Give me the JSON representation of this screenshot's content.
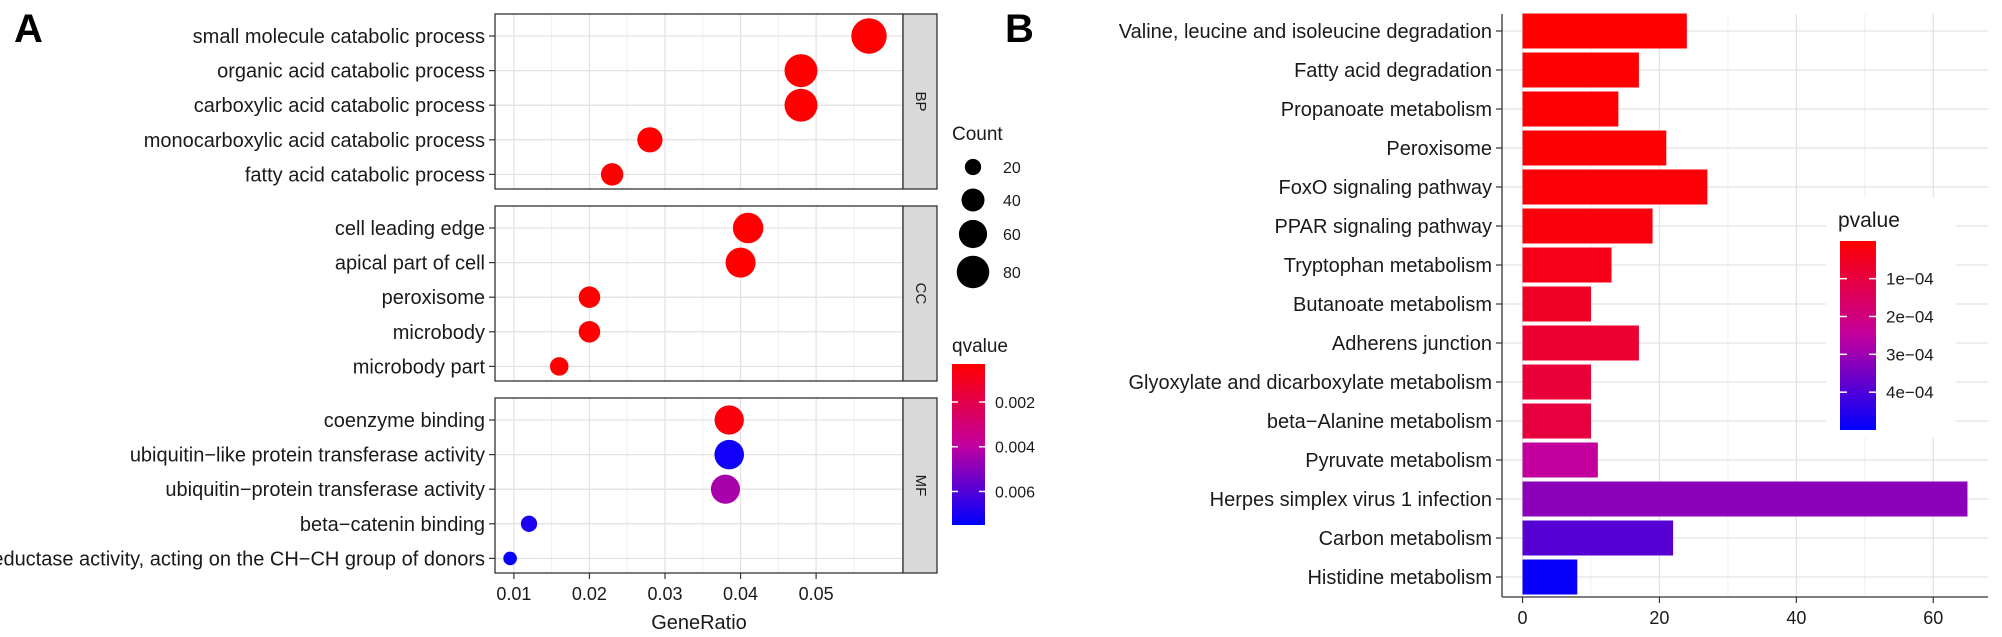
{
  "panels": {
    "a_label": "A",
    "b_label": "B"
  },
  "chart_data": [
    {
      "type": "scatter",
      "panel": "A",
      "xlabel": "GeneRatio",
      "xlim": [
        0.0075,
        0.0615
      ],
      "xticks": [
        0.01,
        0.02,
        0.03,
        0.04,
        0.05
      ],
      "x_tick_labels": [
        "0.01",
        "0.02",
        "0.03",
        "0.04",
        "0.05"
      ],
      "grid": true,
      "facets": [
        {
          "name": "BP",
          "terms": [
            {
              "label": "small molecule catabolic process",
              "x": 0.057,
              "count": 95,
              "qvalue": 0.0003
            },
            {
              "label": "organic acid catabolic process",
              "x": 0.048,
              "count": 82,
              "qvalue": 0.0003
            },
            {
              "label": "carboxylic acid catabolic process",
              "x": 0.048,
              "count": 82,
              "qvalue": 0.0003
            },
            {
              "label": "monocarboxylic acid catabolic process",
              "x": 0.028,
              "count": 48,
              "qvalue": 0.0003
            },
            {
              "label": "fatty acid catabolic process",
              "x": 0.023,
              "count": 38,
              "qvalue": 0.0003
            }
          ]
        },
        {
          "name": "CC",
          "terms": [
            {
              "label": "cell leading edge",
              "x": 0.041,
              "count": 70,
              "qvalue": 0.0003
            },
            {
              "label": "apical part of cell",
              "x": 0.04,
              "count": 68,
              "qvalue": 0.0003
            },
            {
              "label": "peroxisome",
              "x": 0.02,
              "count": 35,
              "qvalue": 0.0003
            },
            {
              "label": "microbody",
              "x": 0.02,
              "count": 35,
              "qvalue": 0.0003
            },
            {
              "label": "microbody part",
              "x": 0.016,
              "count": 26,
              "qvalue": 0.0003
            }
          ]
        },
        {
          "name": "MF",
          "terms": [
            {
              "label": "coenzyme binding",
              "x": 0.0385,
              "count": 65,
              "qvalue": 0.0006
            },
            {
              "label": "ubiquitin−like protein transferase activity",
              "x": 0.0385,
              "count": 66,
              "qvalue": 0.0072
            },
            {
              "label": "ubiquitin−protein transferase activity",
              "x": 0.038,
              "count": 64,
              "qvalue": 0.0044
            },
            {
              "label": "beta−catenin binding",
              "x": 0.012,
              "count": 20,
              "qvalue": 0.007
            },
            {
              "label": "oxidoreductase activity, acting on the CH−CH group of donors",
              "x": 0.0095,
              "count": 14,
              "qvalue": 0.0074
            }
          ]
        }
      ],
      "size_legend": {
        "title": "Count",
        "values": [
          20,
          40,
          60,
          80
        ],
        "labels": [
          "20",
          "40",
          "60",
          "80"
        ]
      },
      "color_legend": {
        "title": "qvalue",
        "range": [
          0.0003,
          0.0075
        ],
        "ticks": [
          0.002,
          0.004,
          0.006
        ],
        "tick_labels": [
          "0.002",
          "0.004",
          "0.006"
        ],
        "low_color": "#ff0000",
        "high_color": "#0000ff"
      }
    },
    {
      "type": "bar",
      "orientation": "horizontal",
      "panel": "B",
      "categories": [
        "Valine, leucine and isoleucine degradation",
        "Fatty acid degradation",
        "Propanoate metabolism",
        "Peroxisome",
        "FoxO signaling pathway",
        "PPAR signaling pathway",
        "Tryptophan metabolism",
        "Butanoate metabolism",
        "Adherens junction",
        "Glyoxylate and dicarboxylate metabolism",
        "beta−Alanine metabolism",
        "Pyruvate metabolism",
        "Herpes simplex virus 1 infection",
        "Carbon metabolism",
        "Histidine metabolism"
      ],
      "values": [
        24,
        17,
        14,
        21,
        27,
        19,
        13,
        10,
        17,
        10,
        10,
        11,
        65,
        22,
        8
      ],
      "pvalues": [
        5e-07,
        3e-06,
        5e-06,
        7e-06,
        1.2e-05,
        2e-05,
        4e-05,
        6e-05,
        8e-05,
        9e-05,
        0.0001,
        0.00025,
        0.00032,
        0.00039,
        0.00049
      ],
      "xlim": [
        -3,
        68
      ],
      "xticks": [
        0,
        20,
        40,
        60
      ],
      "x_tick_labels": [
        "0",
        "20",
        "40",
        "60"
      ],
      "grid": true,
      "color_legend": {
        "title": "pvalue",
        "range": [
          5e-07,
          0.0005
        ],
        "ticks": [
          0.0001,
          0.0002,
          0.0003,
          0.0004
        ],
        "tick_labels": [
          "1e−04",
          "2e−04",
          "3e−04",
          "4e−04"
        ],
        "low_color": "#ff0000",
        "high_color": "#0000ff",
        "placement": "inside-right"
      }
    }
  ]
}
